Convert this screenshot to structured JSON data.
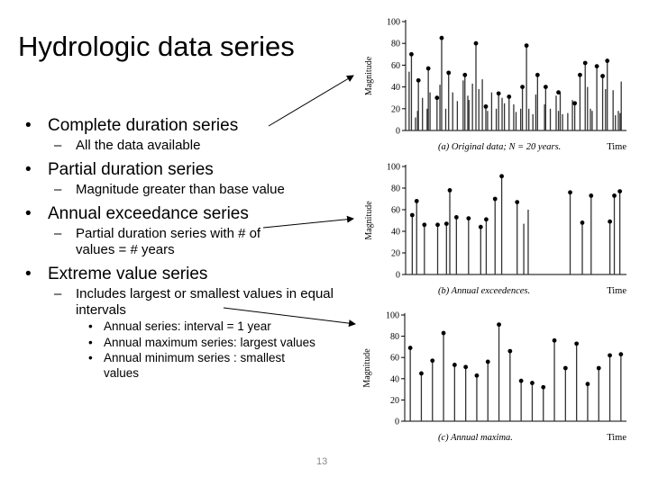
{
  "slide": {
    "title": "Hydrologic data series",
    "page_number": "13",
    "bullets": [
      {
        "text": "Complete duration series",
        "sub": [
          {
            "text": "All the data available"
          }
        ]
      },
      {
        "text": "Partial duration series",
        "sub": [
          {
            "text": "Magnitude greater than base value"
          }
        ]
      },
      {
        "text": "Annual exceedance series",
        "sub": [
          {
            "text": "Partial duration series with # of values = # years"
          }
        ]
      },
      {
        "text": "Extreme value series",
        "sub": [
          {
            "text": "Includes largest or smallest values in equal intervals",
            "sub": [
              {
                "text": "Annual series:  interval = 1 year"
              },
              {
                "text": "Annual maximum series: largest values"
              },
              {
                "text": "Annual minimum series : smallest values"
              }
            ]
          }
        ]
      }
    ]
  },
  "chart_data": [
    {
      "type": "bar",
      "caption": "(a)  Original data;  N = 20 years.",
      "ylabel": "Magnitude",
      "xlabel": "Time",
      "ylim": [
        0,
        100
      ],
      "yticks": [
        0,
        20,
        40,
        60,
        80,
        100
      ],
      "grid": false,
      "x": [
        1.1,
        1.5,
        2.2,
        2.55,
        2.7,
        3.4,
        4.2,
        4.4,
        4.7,
        5.9,
        6.4,
        6.7,
        7.4,
        7.9,
        8.6,
        9.4,
        10.4,
        10.7,
        11.2,
        11.4,
        12.0,
        12.6,
        13.1,
        13.7,
        14.3,
        14.6,
        15.3,
        16.1,
        16.5,
        17.1,
        17.5,
        18.3,
        19.1,
        19.5,
        20.3,
        20.6,
        21.3,
        21.7,
        22.4,
        22.9,
        23.2,
        24.4,
        24.6,
        25.4,
        26.4,
        26.8,
        27.1,
        27.5,
        28.4,
        29.2,
        29.6,
        30.5,
        31.4,
        31.8,
        32.3,
        32.6,
        33.4,
        34.4,
        34.9,
        35.2,
        36.2,
        36.6,
        37.1,
        37.4,
        37.6
      ],
      "values": [
        54,
        70,
        12,
        18,
        46,
        30,
        20,
        57,
        35,
        30,
        42,
        85,
        20,
        53,
        35,
        27,
        46,
        51,
        32,
        28,
        43,
        80,
        38,
        47,
        22,
        18,
        35,
        20,
        34,
        30,
        25,
        31,
        24,
        17,
        20,
        40,
        78,
        20,
        15,
        33,
        51,
        24,
        40,
        20,
        32,
        18,
        35,
        15,
        16,
        28,
        25,
        51,
        62,
        40,
        20,
        18,
        59,
        50,
        38,
        64,
        37,
        14,
        18,
        16,
        45
      ],
      "markers": [
        [
          1.5,
          70
        ],
        [
          2.7,
          46
        ],
        [
          4.4,
          57
        ],
        [
          5.9,
          30
        ],
        [
          6.7,
          85
        ],
        [
          7.9,
          53
        ],
        [
          10.7,
          51
        ],
        [
          12.6,
          80
        ],
        [
          14.3,
          22
        ],
        [
          16.5,
          34
        ],
        [
          18.3,
          31
        ],
        [
          20.6,
          40
        ],
        [
          21.3,
          78
        ],
        [
          23.2,
          51
        ],
        [
          24.6,
          40
        ],
        [
          26.8,
          35
        ],
        [
          29.6,
          25
        ],
        [
          30.5,
          51
        ],
        [
          31.4,
          62
        ],
        [
          33.4,
          59
        ],
        [
          34.4,
          50
        ],
        [
          35.2,
          64
        ]
      ]
    },
    {
      "type": "bar",
      "caption": "(b)  Annual exceedences.",
      "ylabel": "Magnitude",
      "xlabel": "Time",
      "ylim": [
        0,
        100
      ],
      "yticks": [
        0,
        20,
        40,
        60,
        80,
        100
      ],
      "grid": false,
      "x": [
        1.1,
        1.5,
        2.2,
        3.4,
        4.2,
        4.5,
        5.1,
        6.2,
        7.3,
        7.8,
        8.6,
        9.2,
        10.6,
        11.2,
        11.6,
        15.4,
        16.5,
        17.3,
        19.0,
        19.4,
        19.9
      ],
      "values": [
        55,
        68,
        46,
        46,
        47,
        78,
        53,
        52,
        44,
        51,
        70,
        91,
        67,
        47,
        60,
        76,
        48,
        73,
        49,
        73,
        77
      ],
      "markers": [
        [
          1.1,
          55
        ],
        [
          1.5,
          68
        ],
        [
          2.2,
          46
        ],
        [
          3.4,
          46
        ],
        [
          4.2,
          47
        ],
        [
          4.5,
          78
        ],
        [
          5.1,
          53
        ],
        [
          6.2,
          52
        ],
        [
          7.3,
          44
        ],
        [
          7.8,
          51
        ],
        [
          8.6,
          70
        ],
        [
          9.2,
          91
        ],
        [
          10.6,
          67
        ],
        [
          15.4,
          76
        ],
        [
          16.5,
          48
        ],
        [
          17.3,
          73
        ],
        [
          19.0,
          49
        ],
        [
          19.4,
          73
        ],
        [
          19.9,
          77
        ]
      ]
    },
    {
      "type": "bar",
      "caption": "(c)  Annual maxima.",
      "ylabel": "Magnitude",
      "xlabel": "Time",
      "ylim": [
        0,
        100
      ],
      "yticks": [
        0,
        20,
        40,
        60,
        80,
        100
      ],
      "grid": false,
      "x": [
        1,
        2,
        3,
        4,
        5,
        6,
        7,
        8,
        9,
        10,
        11,
        12,
        13,
        14,
        15,
        16,
        17,
        18,
        19,
        20
      ],
      "values": [
        69,
        45,
        57,
        83,
        53,
        51,
        43,
        56,
        91,
        66,
        38,
        36,
        32,
        76,
        50,
        73,
        35,
        50,
        62,
        63
      ],
      "markers": [
        [
          1,
          69
        ],
        [
          2,
          45
        ],
        [
          3,
          57
        ],
        [
          4,
          83
        ],
        [
          5,
          53
        ],
        [
          6,
          51
        ],
        [
          7,
          43
        ],
        [
          8,
          56
        ],
        [
          9,
          91
        ],
        [
          10,
          66
        ],
        [
          11,
          38
        ],
        [
          12,
          36
        ],
        [
          13,
          32
        ],
        [
          14,
          76
        ],
        [
          15,
          50
        ],
        [
          16,
          73
        ],
        [
          17,
          35
        ],
        [
          18,
          50
        ],
        [
          19,
          62
        ],
        [
          20,
          63
        ]
      ]
    }
  ]
}
